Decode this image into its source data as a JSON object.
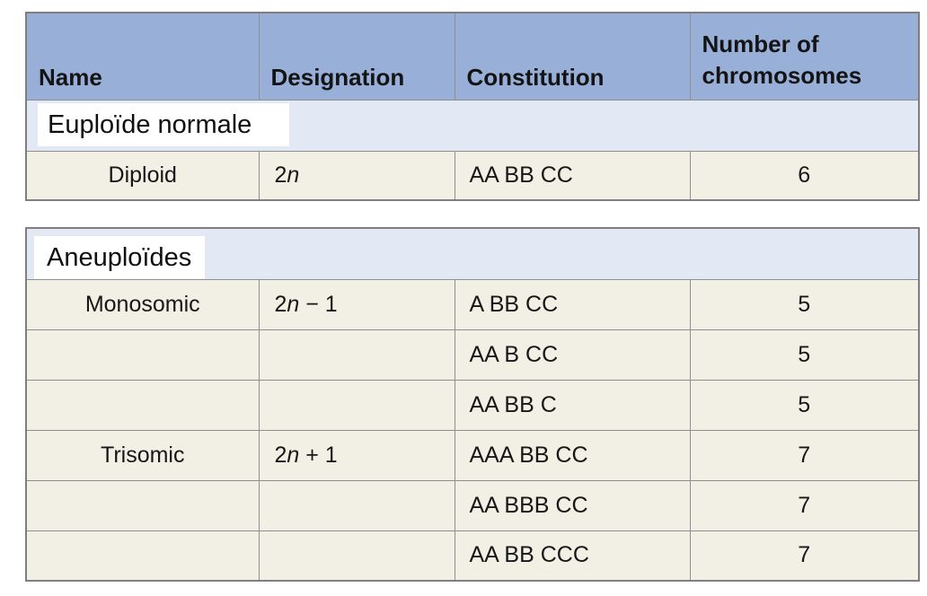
{
  "colors": {
    "header_bg": "#98afd8",
    "section_band_bg": "#e3e8f5",
    "data_row_bg": "#f2efe4",
    "label_box_bg": "#ffffff",
    "border": "#8f8f8f",
    "text": "#1a1a1a"
  },
  "header": {
    "col_name": "Name",
    "col_designation": "Designation",
    "col_constitution": "Constitution",
    "col_number_line1": "Number of",
    "col_number_line2": "chromosomes"
  },
  "section1": {
    "label": "Euploïde normale",
    "rows": [
      {
        "name": "Diploid",
        "des_pre": "2",
        "des_var": "n",
        "des_post": "",
        "constitution": "AA BB CC",
        "number": "6"
      }
    ]
  },
  "section2": {
    "label": "Aneuploïdes",
    "rows": [
      {
        "name": "Monosomic",
        "des_pre": "2",
        "des_var": "n",
        "des_post": " − 1",
        "constitution": "A BB CC",
        "number": "5"
      },
      {
        "name": "",
        "des_pre": "",
        "des_var": "",
        "des_post": "",
        "constitution": "AA B CC",
        "number": "5"
      },
      {
        "name": "",
        "des_pre": "",
        "des_var": "",
        "des_post": "",
        "constitution": "AA BB C",
        "number": "5"
      },
      {
        "name": "Trisomic",
        "des_pre": "2",
        "des_var": "n",
        "des_post": " + 1",
        "constitution": "AAA BB CC",
        "number": "7"
      },
      {
        "name": "",
        "des_pre": "",
        "des_var": "",
        "des_post": "",
        "constitution": "AA BBB CC",
        "number": "7"
      },
      {
        "name": "",
        "des_pre": "",
        "des_var": "",
        "des_post": "",
        "constitution": "AA BB CCC",
        "number": "7"
      }
    ]
  }
}
